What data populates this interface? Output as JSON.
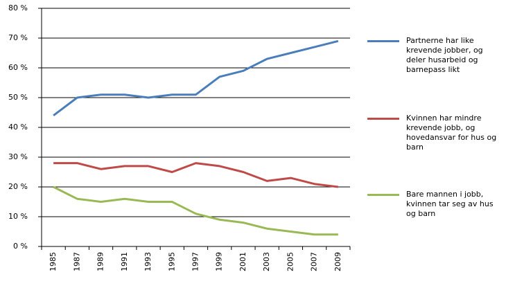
{
  "chart_data": {
    "type": "line",
    "categories": [
      "1985",
      "1987",
      "1989",
      "1991",
      "1993",
      "1995",
      "1997",
      "1999",
      "2001",
      "2003",
      "2005",
      "2007",
      "2009"
    ],
    "series": [
      {
        "name": "Partnerne har like krevende jobber, og deler husarbeid og barnepass likt",
        "color": "#4a7ebb",
        "values": [
          44,
          50,
          51,
          51,
          50,
          51,
          51,
          57,
          59,
          63,
          65,
          67,
          69
        ]
      },
      {
        "name": "Kvinnen har mindre krevende jobb, og hovedansvar for hus og barn",
        "color": "#be4b48",
        "values": [
          28,
          28,
          26,
          27,
          27,
          25,
          28,
          27,
          25,
          22,
          23,
          21,
          20
        ]
      },
      {
        "name": "Bare mannen i jobb, kvinnen tar seg av hus og barn",
        "color": "#98b954",
        "values": [
          20,
          16,
          15,
          16,
          15,
          15,
          11,
          9,
          8,
          6,
          5,
          4,
          4
        ]
      }
    ],
    "ylim": [
      0,
      80
    ],
    "yticks": [
      {
        "value": 0,
        "label": "0 %"
      },
      {
        "value": 10,
        "label": "10 %"
      },
      {
        "value": 20,
        "label": "20 %"
      },
      {
        "value": 30,
        "label": "30 %"
      },
      {
        "value": 40,
        "label": "40 %"
      },
      {
        "value": 50,
        "label": "50 %"
      },
      {
        "value": 60,
        "label": "60 %"
      },
      {
        "value": 70,
        "label": "70 %"
      },
      {
        "value": 80,
        "label": "80 %"
      }
    ],
    "grid": true
  }
}
